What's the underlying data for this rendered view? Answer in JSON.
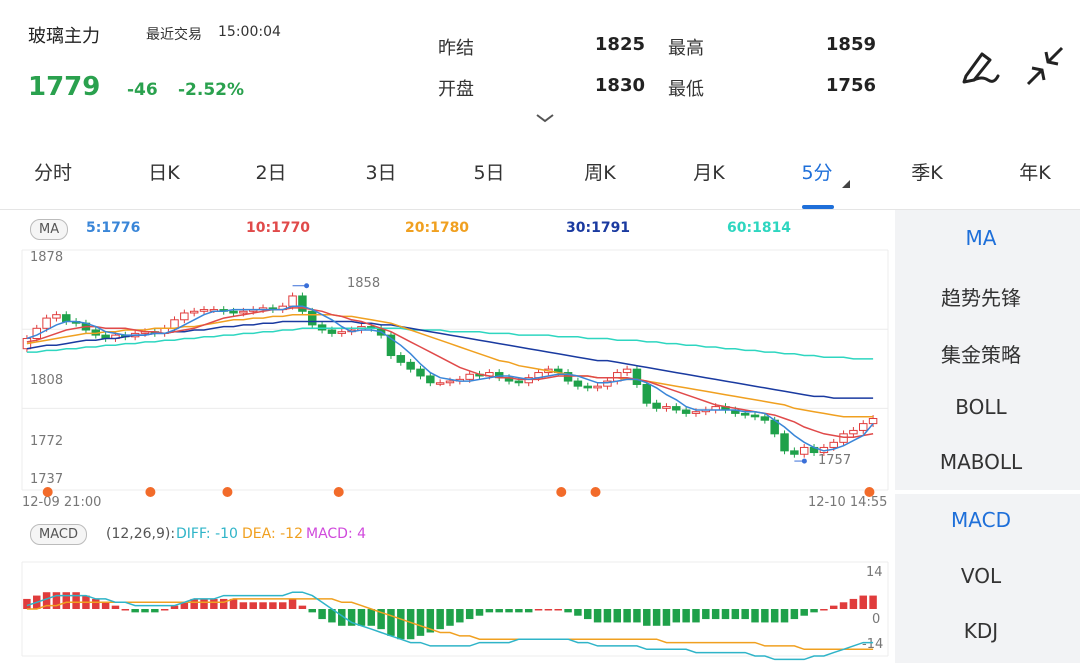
{
  "header": {
    "title": "玻璃主力",
    "trade_label": "最近交易",
    "trade_time": "15:00:04",
    "price": "1779",
    "change": "-46",
    "change_pct": "-2.52%",
    "stats": [
      {
        "label": "昨结",
        "value": "1825"
      },
      {
        "label": "最高",
        "value": "1859"
      },
      {
        "label": "开盘",
        "value": "1830"
      },
      {
        "label": "最低",
        "value": "1756"
      }
    ],
    "draw_icon": "pen-draw-icon",
    "collapse_icon": "collapse-arrows-icon",
    "expand_icon": "chevron-down-icon"
  },
  "tabs": [
    {
      "label": "分时"
    },
    {
      "label": "日K"
    },
    {
      "label": "2日"
    },
    {
      "label": "3日"
    },
    {
      "label": "5日"
    },
    {
      "label": "周K"
    },
    {
      "label": "月K"
    },
    {
      "label": "5分"
    },
    {
      "label": "季K"
    },
    {
      "label": "年K"
    }
  ],
  "active_tab": "5分",
  "ma_legend": {
    "pill": "MA",
    "items": [
      {
        "text": "5:1776",
        "color": "#3a86d8"
      },
      {
        "text": "10:1770",
        "color": "#e04a4a"
      },
      {
        "text": "20:1780",
        "color": "#f0a020"
      },
      {
        "text": "30:1791",
        "color": "#1a3aa0"
      },
      {
        "text": "60:1814",
        "color": "#2ed6c0"
      }
    ]
  },
  "main_axis": {
    "labels": [
      "1878",
      "1808",
      "1772",
      "1737"
    ],
    "high_marker": "1858",
    "low_marker": "1757",
    "time_start": "12-09 21:00",
    "time_end": "12-10 14:55"
  },
  "macd_legend": {
    "pill": "MACD",
    "params": "(12,26,9):",
    "diff": "DIFF: -10",
    "dea": "DEA: -12",
    "macd": "MACD: 4"
  },
  "macd_axis": {
    "top": "14",
    "zero": "0",
    "bottom": "-14"
  },
  "side_main": [
    "MA",
    "趋势先锋",
    "集金策略",
    "BOLL",
    "MABOLL"
  ],
  "side_sub": [
    "MACD",
    "VOL",
    "KDJ"
  ],
  "chart_data": {
    "type": "candlestick",
    "ylim": [
      1737,
      1878
    ],
    "closes": [
      1826,
      1832,
      1838,
      1840,
      1836,
      1835,
      1831,
      1828,
      1826,
      1828,
      1827,
      1829,
      1830,
      1829,
      1832,
      1837,
      1841,
      1842,
      1843,
      1843,
      1842,
      1841,
      1842,
      1843,
      1844,
      1843,
      1845,
      1851,
      1842,
      1834,
      1831,
      1829,
      1830,
      1831,
      1833,
      1832,
      1828,
      1816,
      1812,
      1808,
      1804,
      1800,
      1800,
      1801,
      1802,
      1805,
      1804,
      1806,
      1803,
      1801,
      1800,
      1803,
      1806,
      1808,
      1806,
      1801,
      1798,
      1797,
      1798,
      1801,
      1806,
      1808,
      1799,
      1788,
      1785,
      1786,
      1784,
      1782,
      1783,
      1784,
      1786,
      1784,
      1782,
      1781,
      1780,
      1778,
      1770,
      1760,
      1758,
      1762,
      1759,
      1762,
      1765,
      1770,
      1772,
      1776,
      1779
    ],
    "opens": [
      1820,
      1826,
      1832,
      1838,
      1840,
      1836,
      1835,
      1831,
      1828,
      1826,
      1828,
      1827,
      1829,
      1830,
      1829,
      1832,
      1837,
      1841,
      1842,
      1843,
      1843,
      1842,
      1841,
      1842,
      1843,
      1844,
      1843,
      1845,
      1851,
      1842,
      1834,
      1831,
      1829,
      1830,
      1831,
      1833,
      1832,
      1828,
      1816,
      1812,
      1808,
      1804,
      1800,
      1800,
      1801,
      1802,
      1805,
      1804,
      1806,
      1803,
      1801,
      1800,
      1803,
      1806,
      1808,
      1806,
      1801,
      1798,
      1797,
      1798,
      1801,
      1806,
      1808,
      1799,
      1788,
      1785,
      1786,
      1784,
      1782,
      1783,
      1784,
      1786,
      1784,
      1782,
      1781,
      1780,
      1778,
      1770,
      1760,
      1758,
      1762,
      1759,
      1762,
      1765,
      1770,
      1772,
      1776
    ],
    "ma5": [
      1826,
      1828,
      1831,
      1834,
      1836,
      1836,
      1835,
      1833,
      1830,
      1829,
      1828,
      1828,
      1828,
      1829,
      1829,
      1831,
      1834,
      1837,
      1840,
      1842,
      1842,
      1843,
      1843,
      1843,
      1843,
      1843,
      1843,
      1845,
      1845,
      1843,
      1840,
      1837,
      1833,
      1830,
      1831,
      1831,
      1830,
      1826,
      1822,
      1817,
      1811,
      1806,
      1803,
      1802,
      1801,
      1801,
      1802,
      1803,
      1804,
      1804,
      1803,
      1802,
      1803,
      1804,
      1805,
      1805,
      1804,
      1802,
      1800,
      1800,
      1801,
      1802,
      1802,
      1800,
      1797,
      1793,
      1790,
      1786,
      1784,
      1784,
      1784,
      1784,
      1784,
      1783,
      1783,
      1782,
      1778,
      1774,
      1769,
      1765,
      1762,
      1760,
      1761,
      1763,
      1766,
      1769,
      1776
    ],
    "ma10": [
      1824,
      1825,
      1827,
      1829,
      1831,
      1832,
      1833,
      1833,
      1832,
      1832,
      1832,
      1831,
      1830,
      1830,
      1829,
      1830,
      1831,
      1832,
      1834,
      1836,
      1838,
      1839,
      1840,
      1841,
      1842,
      1843,
      1843,
      1844,
      1844,
      1843,
      1842,
      1840,
      1839,
      1837,
      1836,
      1834,
      1832,
      1830,
      1827,
      1824,
      1821,
      1818,
      1815,
      1812,
      1809,
      1807,
      1805,
      1804,
      1803,
      1803,
      1802,
      1802,
      1802,
      1803,
      1804,
      1804,
      1804,
      1804,
      1803,
      1803,
      1803,
      1803,
      1802,
      1801,
      1799,
      1797,
      1795,
      1793,
      1791,
      1789,
      1787,
      1786,
      1785,
      1784,
      1783,
      1782,
      1781,
      1779,
      1777,
      1774,
      1772,
      1770,
      1769,
      1768,
      1768,
      1769,
      1770
    ],
    "ma20": [
      1823,
      1824,
      1825,
      1826,
      1827,
      1828,
      1829,
      1829,
      1830,
      1830,
      1831,
      1831,
      1831,
      1832,
      1832,
      1832,
      1833,
      1833,
      1834,
      1835,
      1836,
      1837,
      1837,
      1838,
      1838,
      1839,
      1839,
      1840,
      1840,
      1840,
      1840,
      1840,
      1839,
      1839,
      1838,
      1837,
      1836,
      1835,
      1833,
      1831,
      1829,
      1827,
      1825,
      1823,
      1821,
      1819,
      1817,
      1815,
      1813,
      1812,
      1810,
      1809,
      1808,
      1807,
      1806,
      1805,
      1804,
      1804,
      1803,
      1803,
      1803,
      1802,
      1802,
      1801,
      1800,
      1799,
      1798,
      1797,
      1796,
      1795,
      1794,
      1793,
      1792,
      1791,
      1790,
      1789,
      1788,
      1787,
      1785,
      1784,
      1783,
      1782,
      1781,
      1780,
      1780,
      1780,
      1780
    ],
    "ma30": [
      1820,
      1821,
      1822,
      1822,
      1823,
      1824,
      1825,
      1825,
      1826,
      1826,
      1827,
      1828,
      1828,
      1829,
      1829,
      1830,
      1830,
      1831,
      1831,
      1832,
      1833,
      1833,
      1834,
      1834,
      1835,
      1835,
      1836,
      1836,
      1836,
      1836,
      1836,
      1836,
      1836,
      1836,
      1835,
      1835,
      1834,
      1834,
      1833,
      1832,
      1831,
      1830,
      1829,
      1828,
      1827,
      1826,
      1825,
      1824,
      1823,
      1822,
      1821,
      1820,
      1819,
      1818,
      1817,
      1816,
      1815,
      1814,
      1813,
      1813,
      1812,
      1811,
      1810,
      1809,
      1808,
      1807,
      1806,
      1805,
      1804,
      1803,
      1802,
      1801,
      1800,
      1799,
      1798,
      1797,
      1796,
      1795,
      1794,
      1793,
      1792,
      1792,
      1791,
      1791,
      1791,
      1791,
      1791
    ],
    "ma60": [
      1818,
      1818,
      1819,
      1819,
      1820,
      1820,
      1821,
      1821,
      1822,
      1822,
      1823,
      1823,
      1824,
      1824,
      1825,
      1825,
      1826,
      1826,
      1827,
      1827,
      1828,
      1828,
      1829,
      1829,
      1830,
      1830,
      1831,
      1831,
      1832,
      1832,
      1832,
      1832,
      1832,
      1832,
      1832,
      1832,
      1832,
      1832,
      1832,
      1831,
      1831,
      1831,
      1831,
      1830,
      1830,
      1830,
      1830,
      1829,
      1829,
      1829,
      1828,
      1828,
      1828,
      1828,
      1827,
      1827,
      1827,
      1826,
      1826,
      1826,
      1825,
      1825,
      1825,
      1824,
      1824,
      1823,
      1823,
      1822,
      1822,
      1821,
      1821,
      1820,
      1820,
      1819,
      1819,
      1818,
      1818,
      1817,
      1817,
      1816,
      1816,
      1815,
      1815,
      1815,
      1814,
      1814,
      1814
    ],
    "macd_ylim": [
      -14,
      14
    ],
    "macd_hist": [
      3,
      4,
      5,
      5,
      5,
      5,
      4,
      3,
      2,
      1,
      0,
      -1,
      -1,
      -1,
      0,
      1,
      2,
      3,
      3,
      3,
      3,
      3,
      2,
      2,
      2,
      2,
      2,
      3,
      1,
      -1,
      -3,
      -4,
      -5,
      -5,
      -5,
      -5,
      -6,
      -8,
      -9,
      -9,
      -8,
      -7,
      -6,
      -5,
      -4,
      -3,
      -2,
      -1,
      -1,
      -1,
      -1,
      -1,
      0,
      0,
      0,
      -1,
      -2,
      -3,
      -4,
      -4,
      -4,
      -4,
      -4,
      -5,
      -5,
      -5,
      -4,
      -4,
      -4,
      -3,
      -3,
      -3,
      -3,
      -3,
      -4,
      -4,
      -4,
      -4,
      -3,
      -2,
      -1,
      0,
      1,
      2,
      3,
      4,
      4
    ],
    "diff": [
      1,
      2,
      3,
      4,
      4,
      4,
      4,
      3,
      3,
      2,
      2,
      1,
      1,
      1,
      1,
      1,
      2,
      3,
      3,
      3,
      4,
      4,
      4,
      4,
      4,
      4,
      4,
      5,
      5,
      4,
      2,
      0,
      -2,
      -4,
      -5,
      -6,
      -7,
      -8,
      -9,
      -10,
      -10,
      -11,
      -11,
      -11,
      -11,
      -11,
      -10,
      -10,
      -10,
      -10,
      -9,
      -9,
      -9,
      -9,
      -9,
      -9,
      -10,
      -10,
      -11,
      -11,
      -11,
      -11,
      -11,
      -12,
      -12,
      -12,
      -12,
      -12,
      -13,
      -13,
      -13,
      -13,
      -13,
      -13,
      -14,
      -14,
      -15,
      -15,
      -15,
      -15,
      -14,
      -14,
      -13,
      -12,
      -11,
      -10,
      -10
    ],
    "dea": [
      0,
      0,
      1,
      1,
      2,
      2,
      2,
      2,
      2,
      2,
      2,
      2,
      2,
      2,
      2,
      2,
      2,
      2,
      2,
      2,
      2,
      3,
      3,
      3,
      3,
      3,
      3,
      3,
      3,
      3,
      3,
      3,
      2,
      2,
      1,
      0,
      -1,
      -2,
      -3,
      -4,
      -5,
      -6,
      -7,
      -7,
      -8,
      -8,
      -9,
      -9,
      -9,
      -9,
      -9,
      -9,
      -9,
      -9,
      -9,
      -9,
      -9,
      -9,
      -9,
      -9,
      -9,
      -9,
      -9,
      -9,
      -9,
      -10,
      -10,
      -10,
      -10,
      -10,
      -10,
      -10,
      -10,
      -10,
      -10,
      -11,
      -11,
      -11,
      -11,
      -12,
      -12,
      -12,
      -12,
      -12,
      -12,
      -12,
      -12
    ]
  }
}
